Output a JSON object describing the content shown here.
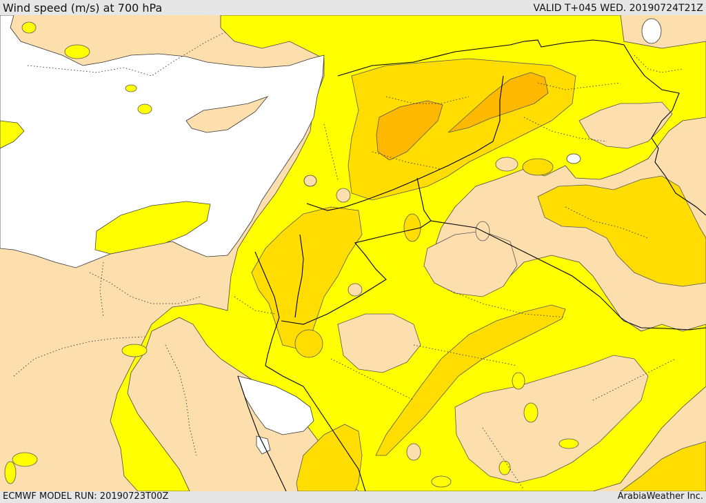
{
  "header": {
    "title": "Wind speed (m/s) at 700 hPa",
    "valid": "VALID T+045 WED. 20190724T21Z"
  },
  "footer": {
    "model_run": "ECMWF MODEL RUN: 20190723T00Z",
    "credit": "ArabiaWeather Inc."
  },
  "colors": {
    "sea": "#ffffff",
    "band_low": "#fddfae",
    "band_mid": "#ffff00",
    "band_high": "#ffdd00",
    "band_max": "#ffb800",
    "border": "#000000"
  }
}
